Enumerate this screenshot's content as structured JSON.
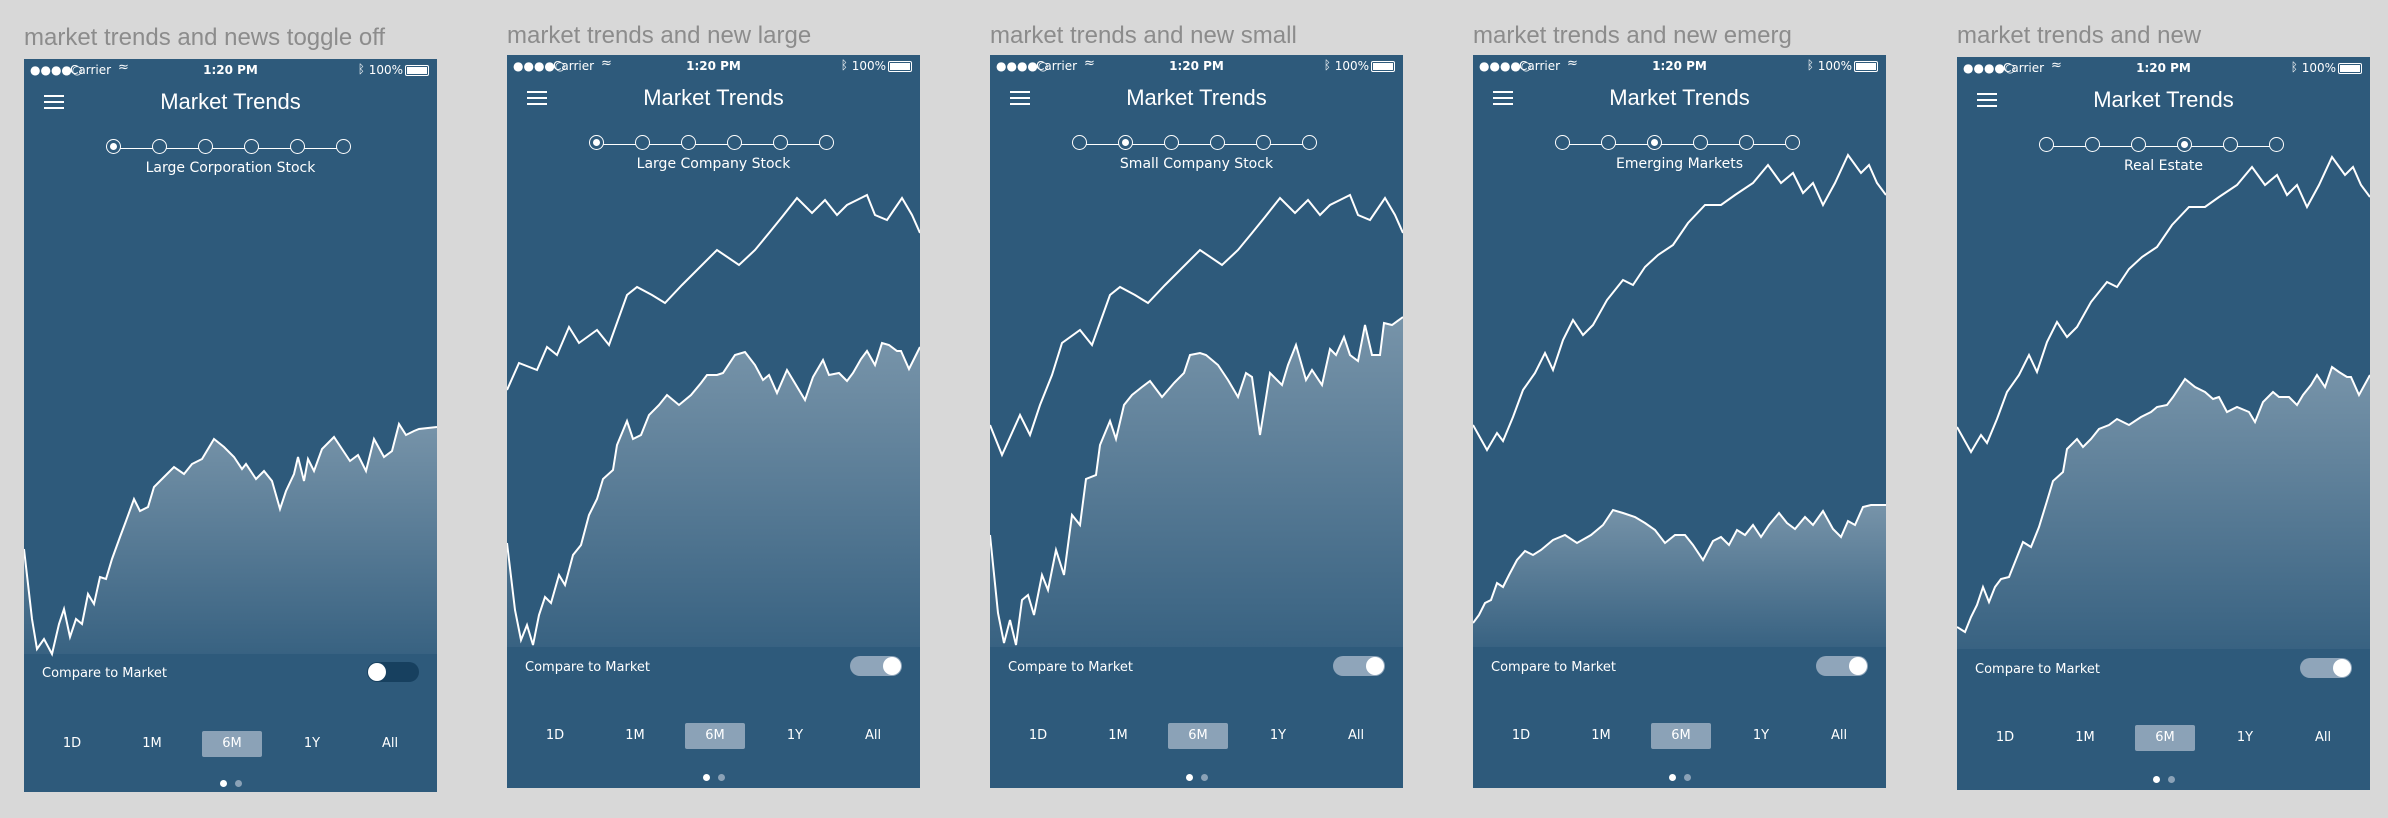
{
  "colors": {
    "background": "#d8d8d8",
    "phone_bg": "#2e5a7b",
    "line": "#ffffff",
    "selected_range": "#8ba2b7"
  },
  "shared": {
    "status": {
      "signal": "●●●●○",
      "carrier": "Carrier",
      "time": "1:20 PM",
      "battery": "100%"
    },
    "app_title": "Market Trends",
    "compare_label": "Compare to Market",
    "ranges": [
      "1D",
      "1M",
      "6M",
      "1Y",
      "All"
    ],
    "selected_range": "6M",
    "icons": [
      "menu-icon",
      "wifi-icon",
      "bluetooth-icon",
      "battery-icon"
    ]
  },
  "boards": [
    {
      "title": "market trends and news toggle off",
      "step_label": "Large Corporation Stock",
      "active_step": 1,
      "compare_on": false,
      "page": 1
    },
    {
      "title": "market trends and new large",
      "step_label": "Large Company Stock",
      "active_step": 1,
      "compare_on": true,
      "page": 1
    },
    {
      "title": "market trends and new small",
      "step_label": "Small Company Stock",
      "active_step": 2,
      "compare_on": true,
      "page": 1
    },
    {
      "title": "market trends and new emerg",
      "step_label": "Emerging Markets",
      "active_step": 3,
      "compare_on": true,
      "page": 1
    },
    {
      "title": "market trends and new",
      "step_label": "Real Estate",
      "active_step": 4,
      "compare_on": true,
      "page": 1
    }
  ]
}
